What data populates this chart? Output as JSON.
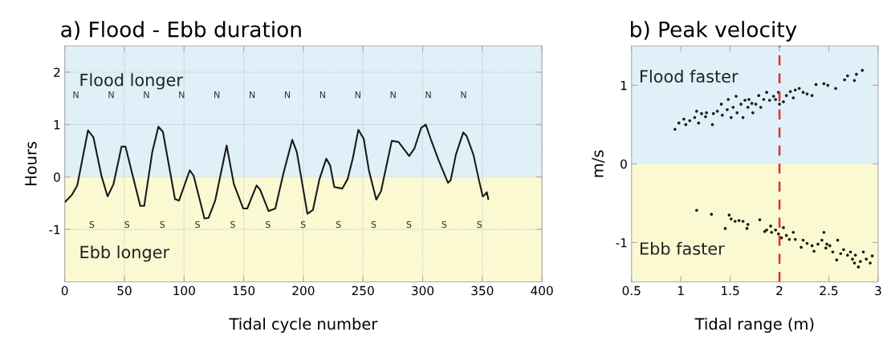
{
  "chart_data": [
    {
      "type": "line",
      "title": "a) Flood - Ebb duration",
      "xlabel": "Tidal cycle number",
      "ylabel": "Hours",
      "xlim": [
        0,
        400
      ],
      "xticks": [
        0,
        50,
        100,
        150,
        200,
        250,
        300,
        350,
        400
      ],
      "ylim": [
        -2,
        2.5
      ],
      "yticks": [
        -1,
        0,
        1,
        2
      ],
      "grid": true,
      "bands": [
        {
          "axis": "y",
          "from": 0,
          "to": 2.5,
          "label": "Flood longer",
          "color": "#dff0f9"
        },
        {
          "axis": "y",
          "from": -2,
          "to": 0,
          "label": "Ebb longer",
          "color": "#fbf9d2"
        }
      ],
      "series": [
        {
          "color": "#1a1a1a",
          "x": [
            0.5,
            6,
            10.5,
            19.5,
            24,
            30.8,
            35.9,
            40.8,
            47.6,
            50.9,
            56.5,
            63.3,
            66.6,
            73.4,
            78.5,
            82.3,
            92.4,
            95.8,
            104.8,
            108.1,
            117.1,
            120.5,
            126.1,
            135.7,
            141.8,
            149.6,
            153,
            160.8,
            163.7,
            170.9,
            176.5,
            183.3,
            190.7,
            194.5,
            203.4,
            208,
            213.5,
            219.2,
            222.5,
            225.9,
            232.6,
            237.1,
            241.6,
            246.1,
            250.6,
            255,
            261.1,
            265.1,
            274.1,
            279.7,
            288.7,
            293.2,
            298.8,
            302.6,
            306.7,
            313.4,
            321.2,
            323.5,
            327.9,
            334,
            336.9,
            342.5,
            347,
            350.4,
            352,
            353.8,
            355
          ],
          "values": [
            -0.47,
            -0.34,
            -0.16,
            0.89,
            0.76,
            0.02,
            -0.37,
            -0.14,
            0.58,
            0.58,
            0.07,
            -0.55,
            -0.55,
            0.48,
            0.96,
            0.86,
            -0.42,
            -0.45,
            0.13,
            0.02,
            -0.79,
            -0.78,
            -0.45,
            0.6,
            -0.14,
            -0.6,
            -0.6,
            -0.16,
            -0.24,
            -0.65,
            -0.6,
            0.07,
            0.71,
            0.48,
            -0.7,
            -0.63,
            -0.04,
            0.35,
            0.22,
            -0.19,
            -0.22,
            -0.04,
            0.37,
            0.9,
            0.73,
            0.12,
            -0.43,
            -0.27,
            0.69,
            0.67,
            0.4,
            0.55,
            0.94,
            1.0,
            0.73,
            0.32,
            -0.11,
            -0.06,
            0.43,
            0.85,
            0.78,
            0.43,
            -0.04,
            -0.37,
            -0.34,
            -0.29,
            -0.42
          ]
        }
      ],
      "annotations": [
        "N",
        "N",
        "N",
        "N",
        "N",
        "N",
        "N",
        "N",
        "N",
        "N",
        "N",
        "N",
        "S",
        "S",
        "S",
        "S",
        "S",
        "S",
        "S",
        "S",
        "S",
        "S",
        "S",
        "S"
      ]
    },
    {
      "type": "scatter",
      "title": "b) Peak velocity",
      "xlabel": "Tidal range (m)",
      "ylabel": "m/s",
      "marker": "circle",
      "xlim": [
        0.5,
        3
      ],
      "xticks": [
        0.5,
        1,
        1.5,
        2,
        2.5,
        3
      ],
      "ylim": [
        -1.5,
        1.5
      ],
      "yticks": [
        -1,
        0,
        1
      ],
      "grid": false,
      "bands": [
        {
          "axis": "y",
          "from": 0,
          "to": 1.5,
          "label": "Flood faster",
          "color": "#dff0f9"
        },
        {
          "axis": "y",
          "from": -1.5,
          "to": 0,
          "label": "Ebb faster",
          "color": "#fbf9d2"
        }
      ],
      "ref_lines": [
        {
          "axis": "x",
          "value": 2,
          "color": "#e0302a",
          "line_style": "dashed"
        }
      ],
      "series": [
        {
          "color": "#1a1a1a",
          "x": [
            0.94,
            0.98,
            1.03,
            1.05,
            1.09,
            1.14,
            1.16,
            1.18,
            1.21,
            1.25,
            1.26,
            1.32,
            1.33,
            1.37,
            1.41,
            1.42,
            1.47,
            1.48,
            1.51,
            1.53,
            1.56,
            1.57,
            1.61,
            1.63,
            1.65,
            1.68,
            1.69,
            1.72,
            1.73,
            1.76,
            1.79,
            1.81,
            1.84,
            1.87,
            1.9,
            1.94,
            1.96,
            1.99,
            2.0,
            2.04,
            2.07,
            2.11,
            2.14,
            2.16,
            2.2,
            2.24,
            2.28,
            2.33,
            2.37,
            2.45,
            2.49,
            2.57,
            2.66,
            2.69,
            2.76,
            2.78,
            2.84,
            1.16,
            1.31,
            1.45,
            1.49,
            1.51,
            1.55,
            1.59,
            1.63,
            1.67,
            1.68,
            1.8,
            1.85,
            1.87,
            1.91,
            1.92,
            1.96,
            1.99,
            2.02,
            2.04,
            2.07,
            2.1,
            2.14,
            2.16,
            2.22,
            2.24,
            2.28,
            2.33,
            2.35,
            2.39,
            2.43,
            2.45,
            2.47,
            2.48,
            2.51,
            2.54,
            2.58,
            2.59,
            2.62,
            2.65,
            2.69,
            2.72,
            2.74,
            2.76,
            2.77,
            2.8,
            2.82,
            2.85,
            2.88,
            2.92,
            2.94
          ],
          "values": [
            0.44,
            0.52,
            0.57,
            0.5,
            0.55,
            0.59,
            0.67,
            0.52,
            0.64,
            0.6,
            0.65,
            0.5,
            0.64,
            0.67,
            0.76,
            0.62,
            0.69,
            0.82,
            0.59,
            0.72,
            0.86,
            0.65,
            0.76,
            0.59,
            0.81,
            0.72,
            0.82,
            0.77,
            0.65,
            0.76,
            0.87,
            0.72,
            0.82,
            0.91,
            0.81,
            0.86,
            0.82,
            0.91,
            0.76,
            0.79,
            0.87,
            0.92,
            0.84,
            0.94,
            0.96,
            0.91,
            0.89,
            0.87,
            1.01,
            1.02,
            1.0,
            0.96,
            1.07,
            1.12,
            1.06,
            1.14,
            1.19,
            -0.59,
            -0.64,
            -0.82,
            -0.65,
            -0.7,
            -0.73,
            -0.72,
            -0.73,
            -0.82,
            -0.77,
            -0.71,
            -0.86,
            -0.84,
            -0.79,
            -0.87,
            -0.84,
            -0.89,
            -0.94,
            -0.81,
            -0.91,
            -0.96,
            -0.87,
            -0.96,
            -1.06,
            -0.97,
            -1.01,
            -1.04,
            -1.11,
            -1.02,
            -0.97,
            -0.87,
            -1.07,
            -1.02,
            -1.04,
            -1.12,
            -1.22,
            -0.97,
            -1.14,
            -1.09,
            -1.16,
            -1.12,
            -1.21,
            -1.26,
            -1.16,
            -1.31,
            -1.24,
            -1.12,
            -1.21,
            -1.26,
            -1.17
          ]
        }
      ]
    }
  ]
}
